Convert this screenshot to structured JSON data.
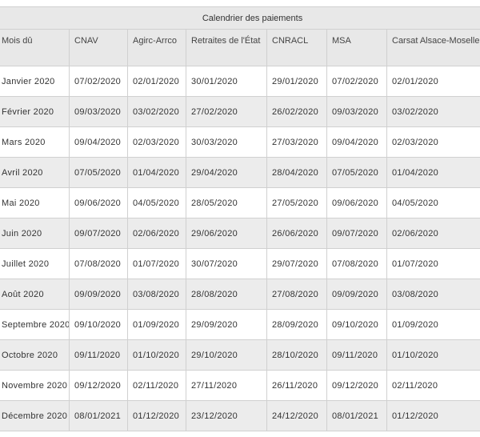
{
  "table": {
    "caption": "Calendrier des paiements",
    "headers": [
      "Mois dû",
      "CNAV",
      "Agirc-Arrco",
      "Retraites de l'État",
      "CNRACL",
      "MSA",
      "Carsat Alsace-Moselle"
    ],
    "rows": [
      [
        "Janvier 2020",
        "07/02/2020",
        "02/01/2020",
        "30/01/2020",
        "29/01/2020",
        "07/02/2020",
        "02/01/2020"
      ],
      [
        "Février 2020",
        "09/03/2020",
        "03/02/2020",
        "27/02/2020",
        "26/02/2020",
        "09/03/2020",
        "03/02/2020"
      ],
      [
        "Mars 2020",
        "09/04/2020",
        "02/03/2020",
        "30/03/2020",
        "27/03/2020",
        "09/04/2020",
        "02/03/2020"
      ],
      [
        "Avril 2020",
        "07/05/2020",
        "01/04/2020",
        "29/04/2020",
        "28/04/2020",
        "07/05/2020",
        "01/04/2020"
      ],
      [
        "Mai 2020",
        "09/06/2020",
        "04/05/2020",
        "28/05/2020",
        "27/05/2020",
        "09/06/2020",
        "04/05/2020"
      ],
      [
        "Juin 2020",
        "09/07/2020",
        "02/06/2020",
        "29/06/2020",
        "26/06/2020",
        "09/07/2020",
        "02/06/2020"
      ],
      [
        "Juillet 2020",
        "07/08/2020",
        "01/07/2020",
        "30/07/2020",
        "29/07/2020",
        "07/08/2020",
        "01/07/2020"
      ],
      [
        "Août 2020",
        "09/09/2020",
        "03/08/2020",
        "28/08/2020",
        "27/08/2020",
        "09/09/2020",
        "03/08/2020"
      ],
      [
        "Septembre 2020",
        "09/10/2020",
        "01/09/2020",
        "29/09/2020",
        "28/09/2020",
        "09/10/2020",
        "01/09/2020"
      ],
      [
        "Octobre 2020",
        "09/11/2020",
        "01/10/2020",
        "29/10/2020",
        "28/10/2020",
        "09/11/2020",
        "01/10/2020"
      ],
      [
        "Novembre 2020",
        "09/12/2020",
        "02/11/2020",
        "27/11/2020",
        "26/11/2020",
        "09/12/2020",
        "02/11/2020"
      ],
      [
        "Décembre 2020",
        "08/01/2021",
        "01/12/2020",
        "23/12/2020",
        "24/12/2020",
        "08/01/2021",
        "01/12/2020"
      ]
    ]
  }
}
